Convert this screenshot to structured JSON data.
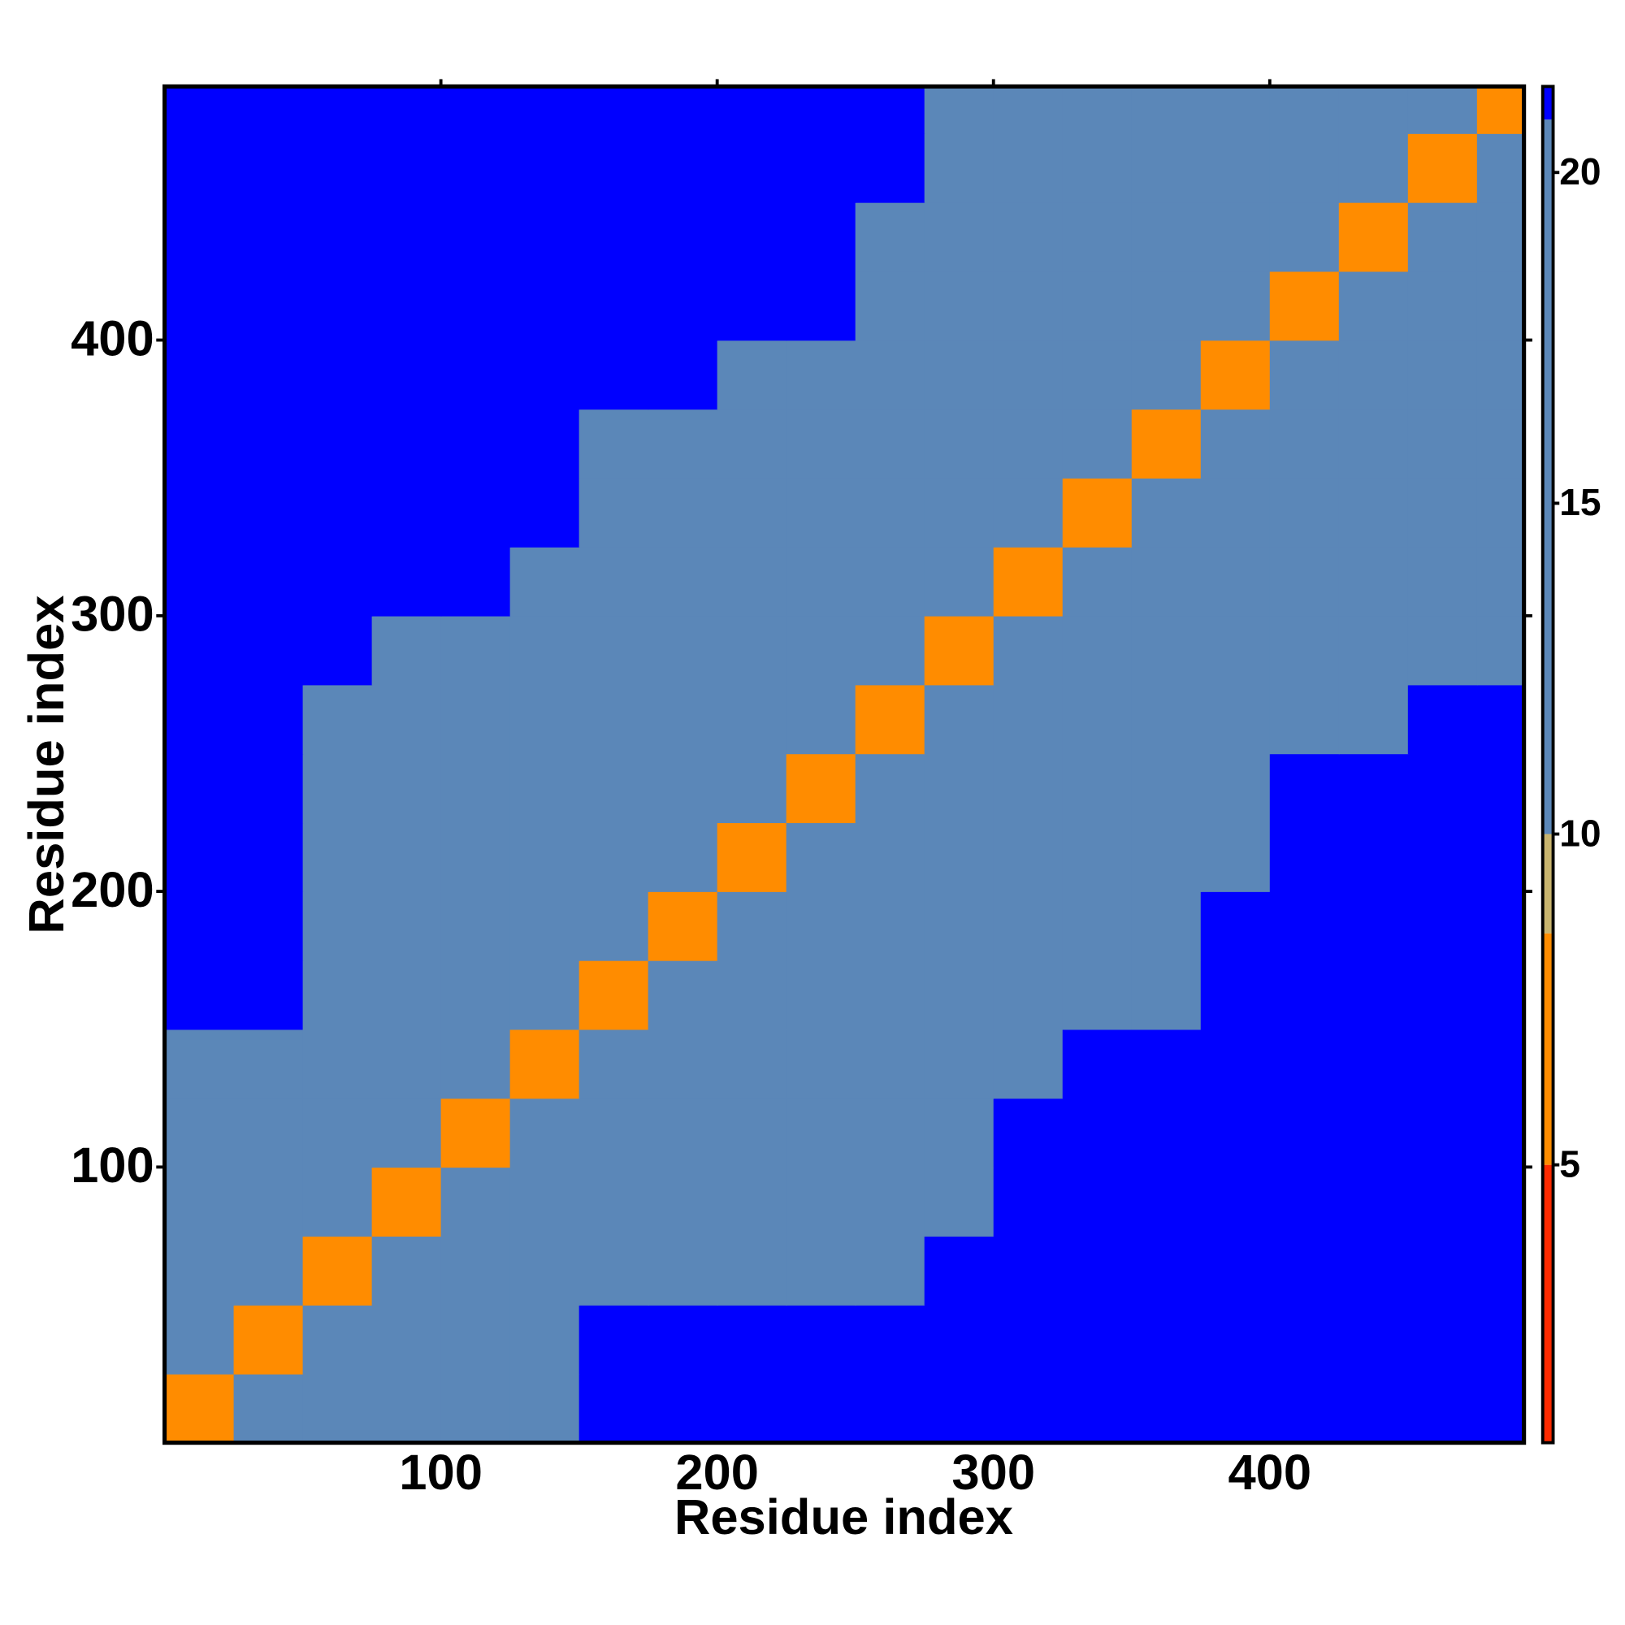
{
  "chart_data": {
    "type": "heatmap",
    "xlabel": "Residue index",
    "ylabel": "Residue index",
    "bins": [
      0,
      25,
      50,
      75,
      100,
      125,
      150,
      175,
      200,
      225,
      250,
      275,
      300,
      325,
      350,
      375,
      400,
      425,
      450,
      475,
      492
    ],
    "z": [
      [
        7,
        12,
        12,
        12,
        12,
        16,
        21,
        21,
        21,
        21,
        21,
        21,
        21,
        21,
        21,
        21,
        21,
        21,
        21,
        21
      ],
      [
        12,
        7,
        12,
        12,
        12,
        16,
        21,
        21,
        21,
        21,
        21,
        21,
        21,
        21,
        21,
        21,
        21,
        21,
        21,
        21
      ],
      [
        12,
        12,
        7,
        12,
        12,
        16,
        16,
        16,
        16,
        16,
        16,
        21,
        21,
        21,
        21,
        21,
        21,
        21,
        21,
        21
      ],
      [
        12,
        12,
        12,
        7,
        12,
        16,
        16,
        16,
        16,
        16,
        16,
        16,
        21,
        21,
        21,
        21,
        21,
        21,
        21,
        21
      ],
      [
        12,
        12,
        12,
        12,
        7,
        12,
        16,
        16,
        16,
        16,
        16,
        16,
        21,
        21,
        21,
        21,
        21,
        21,
        21,
        21
      ],
      [
        16,
        16,
        16,
        16,
        12,
        7,
        12,
        12,
        12,
        12,
        16,
        16,
        16,
        21,
        21,
        21,
        21,
        21,
        21,
        21
      ],
      [
        21,
        21,
        16,
        16,
        16,
        12,
        7,
        12,
        12,
        12,
        12,
        16,
        16,
        16,
        16,
        21,
        21,
        21,
        21,
        21
      ],
      [
        21,
        21,
        16,
        16,
        16,
        12,
        12,
        7,
        12,
        12,
        12,
        16,
        16,
        16,
        16,
        21,
        21,
        21,
        21,
        21
      ],
      [
        21,
        21,
        16,
        16,
        16,
        12,
        12,
        12,
        7,
        12,
        12,
        16,
        16,
        16,
        16,
        16,
        21,
        21,
        21,
        21
      ],
      [
        21,
        21,
        16,
        16,
        16,
        12,
        12,
        12,
        12,
        7,
        12,
        16,
        16,
        16,
        16,
        16,
        21,
        21,
        21,
        21
      ],
      [
        21,
        21,
        16,
        16,
        16,
        16,
        12,
        12,
        12,
        12,
        7,
        12,
        12,
        12,
        12,
        16,
        16,
        16,
        21,
        21
      ],
      [
        21,
        21,
        21,
        16,
        16,
        16,
        16,
        16,
        16,
        16,
        12,
        7,
        12,
        12,
        12,
        16,
        16,
        16,
        16,
        16
      ],
      [
        21,
        21,
        21,
        21,
        21,
        16,
        16,
        16,
        16,
        16,
        12,
        12,
        7,
        12,
        12,
        16,
        16,
        16,
        16,
        16
      ],
      [
        21,
        21,
        21,
        21,
        21,
        21,
        16,
        16,
        16,
        16,
        12,
        12,
        12,
        7,
        12,
        12,
        16,
        16,
        16,
        16
      ],
      [
        21,
        21,
        21,
        21,
        21,
        21,
        16,
        16,
        16,
        16,
        12,
        12,
        12,
        12,
        7,
        12,
        16,
        16,
        16,
        16
      ],
      [
        21,
        21,
        21,
        21,
        21,
        21,
        21,
        21,
        16,
        16,
        16,
        16,
        16,
        12,
        12,
        7,
        12,
        16,
        16,
        16
      ],
      [
        21,
        21,
        21,
        21,
        21,
        21,
        21,
        21,
        21,
        21,
        16,
        16,
        16,
        16,
        16,
        12,
        7,
        12,
        12,
        12
      ],
      [
        21,
        21,
        21,
        21,
        21,
        21,
        21,
        21,
        21,
        21,
        16,
        16,
        16,
        16,
        16,
        16,
        12,
        7,
        12,
        12
      ],
      [
        21,
        21,
        21,
        21,
        21,
        21,
        21,
        21,
        21,
        21,
        21,
        16,
        16,
        16,
        16,
        16,
        12,
        12,
        7,
        12
      ],
      [
        21,
        21,
        21,
        21,
        21,
        21,
        21,
        21,
        21,
        21,
        21,
        16,
        16,
        16,
        16,
        16,
        12,
        12,
        12,
        7
      ]
    ],
    "xlim": [
      0,
      492
    ],
    "ylim": [
      0,
      492
    ],
    "xticks": [
      100,
      200,
      300,
      400
    ],
    "yticks": [
      100,
      200,
      300,
      400
    ],
    "colorbar": {
      "lim": [
        0.8,
        21.3
      ],
      "ticks": [
        5,
        10,
        15,
        20
      ],
      "levels": [
        {
          "upto": 5,
          "color": "#ff2a00"
        },
        {
          "upto": 8.5,
          "color": "#ff8c00"
        },
        {
          "upto": 10,
          "color": "#c8b46e"
        },
        {
          "upto": 20.8,
          "color": "#5b87b8"
        },
        {
          "upto": 21.3,
          "color": "#0000ff"
        }
      ]
    }
  }
}
